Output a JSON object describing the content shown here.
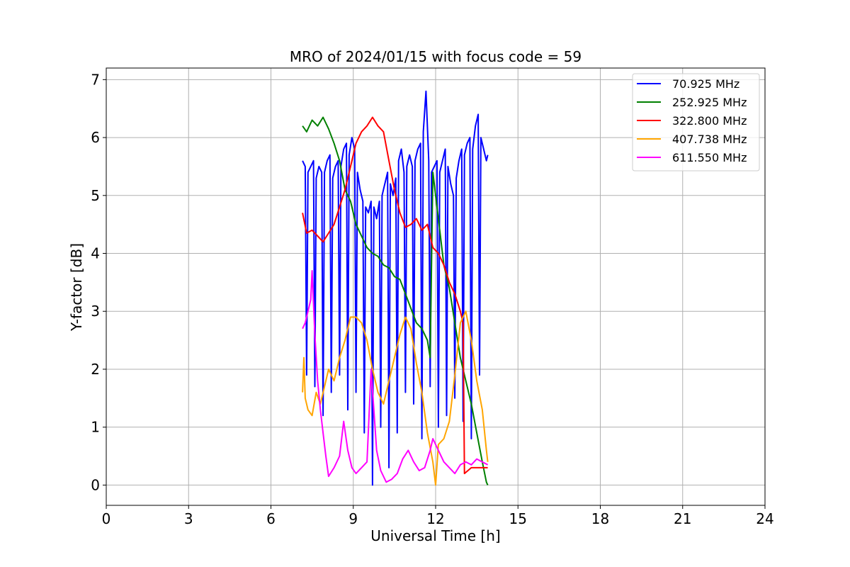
{
  "chart_data": {
    "type": "line",
    "title": "MRO of 2024/01/15 with focus code = 59",
    "xlabel": "Universal Time [h]",
    "ylabel": "Y-factor [dB]",
    "xlim": [
      0,
      24
    ],
    "ylim": [
      -0.35,
      7.2
    ],
    "xticks": [
      0,
      3,
      6,
      9,
      12,
      15,
      18,
      21,
      24
    ],
    "yticks": [
      0,
      1,
      2,
      3,
      4,
      5,
      6,
      7
    ],
    "grid": true,
    "legend_position": "top-right",
    "series": [
      {
        "name": "  70.925 MHz",
        "color": "#0000ff",
        "x": [
          7.15,
          7.25,
          7.3,
          7.35,
          7.45,
          7.55,
          7.6,
          7.65,
          7.75,
          7.85,
          7.9,
          7.95,
          8.05,
          8.15,
          8.2,
          8.25,
          8.35,
          8.45,
          8.5,
          8.55,
          8.65,
          8.75,
          8.8,
          8.85,
          8.95,
          9.05,
          9.1,
          9.15,
          9.25,
          9.35,
          9.4,
          9.45,
          9.55,
          9.65,
          9.7,
          9.75,
          9.85,
          9.95,
          10.0,
          10.05,
          10.15,
          10.25,
          10.3,
          10.35,
          10.45,
          10.55,
          10.6,
          10.65,
          10.75,
          10.85,
          10.9,
          10.95,
          11.05,
          11.15,
          11.2,
          11.25,
          11.35,
          11.45,
          11.5,
          11.55,
          11.65,
          11.75,
          11.8,
          11.85,
          11.95,
          12.05,
          12.1,
          12.15,
          12.25,
          12.35,
          12.4,
          12.45,
          12.55,
          12.65,
          12.7,
          12.75,
          12.85,
          12.95,
          13.0,
          13.05,
          13.15,
          13.25,
          13.3,
          13.35,
          13.45,
          13.55,
          13.6,
          13.65,
          13.75,
          13.85,
          13.9
        ],
        "y": [
          5.6,
          5.5,
          1.9,
          5.4,
          5.5,
          5.6,
          1.7,
          5.3,
          5.5,
          5.4,
          1.2,
          5.4,
          5.6,
          5.7,
          1.6,
          5.3,
          5.5,
          5.6,
          1.9,
          5.5,
          5.8,
          5.9,
          1.3,
          5.7,
          6.0,
          5.8,
          1.6,
          5.4,
          5.1,
          4.9,
          0.9,
          4.8,
          4.7,
          4.9,
          0.0,
          4.8,
          4.6,
          4.9,
          1.0,
          5.0,
          5.2,
          5.4,
          0.3,
          5.2,
          5.0,
          5.3,
          0.9,
          5.6,
          5.8,
          5.4,
          1.6,
          5.5,
          5.7,
          5.5,
          1.4,
          5.6,
          5.8,
          5.9,
          0.8,
          6.1,
          6.8,
          5.6,
          1.7,
          5.4,
          5.5,
          5.6,
          1.0,
          5.4,
          5.6,
          5.8,
          1.2,
          5.5,
          5.2,
          5.0,
          1.5,
          5.3,
          5.6,
          5.8,
          1.1,
          5.7,
          5.9,
          6.0,
          0.8,
          5.8,
          6.2,
          6.4,
          1.9,
          6.0,
          5.8,
          5.6,
          5.7
        ]
      },
      {
        "name": "252.925 MHz",
        "color": "#008000",
        "x": [
          7.15,
          7.3,
          7.5,
          7.7,
          7.9,
          8.1,
          8.3,
          8.5,
          8.7,
          8.9,
          9.1,
          9.3,
          9.5,
          9.7,
          9.9,
          10.1,
          10.3,
          10.5,
          10.7,
          10.9,
          11.1,
          11.3,
          11.5,
          11.7,
          11.8,
          11.9,
          12.1,
          12.3,
          12.5,
          12.7,
          12.9,
          13.1,
          13.3,
          13.5,
          13.7,
          13.85,
          13.9
        ],
        "y": [
          6.2,
          6.1,
          6.3,
          6.2,
          6.35,
          6.15,
          5.9,
          5.6,
          5.1,
          4.9,
          4.5,
          4.3,
          4.1,
          4.0,
          3.95,
          3.8,
          3.75,
          3.6,
          3.55,
          3.3,
          3.05,
          2.8,
          2.7,
          2.5,
          2.2,
          5.4,
          4.6,
          3.8,
          3.4,
          2.8,
          2.2,
          1.8,
          1.4,
          0.9,
          0.4,
          0.05,
          0.0
        ]
      },
      {
        "name": "322.800 MHz",
        "color": "#ff0000",
        "x": [
          7.15,
          7.3,
          7.5,
          7.7,
          7.9,
          8.1,
          8.3,
          8.5,
          8.7,
          8.9,
          9.1,
          9.3,
          9.5,
          9.7,
          9.9,
          10.1,
          10.3,
          10.5,
          10.7,
          10.9,
          11.1,
          11.3,
          11.5,
          11.7,
          11.9,
          12.1,
          12.3,
          12.5,
          12.7,
          12.9,
          13.0,
          13.05,
          13.3,
          13.6,
          13.9
        ],
        "y": [
          4.7,
          4.35,
          4.4,
          4.3,
          4.2,
          4.35,
          4.5,
          4.8,
          5.1,
          5.5,
          5.9,
          6.1,
          6.2,
          6.35,
          6.2,
          6.1,
          5.6,
          5.1,
          4.7,
          4.45,
          4.5,
          4.6,
          4.4,
          4.5,
          4.1,
          4.0,
          3.8,
          3.5,
          3.3,
          3.0,
          2.8,
          0.2,
          0.3,
          0.3,
          0.3
        ]
      },
      {
        "name": "407.738 MHz",
        "color": "#ffa500",
        "x": [
          7.15,
          7.2,
          7.25,
          7.35,
          7.5,
          7.65,
          7.8,
          7.95,
          8.1,
          8.3,
          8.5,
          8.7,
          8.9,
          9.1,
          9.3,
          9.5,
          9.7,
          9.9,
          10.1,
          10.3,
          10.5,
          10.7,
          10.9,
          11.1,
          11.3,
          11.5,
          11.7,
          11.9,
          12.0,
          12.1,
          12.3,
          12.5,
          12.7,
          12.9,
          13.1,
          13.3,
          13.5,
          13.7,
          13.85,
          13.9
        ],
        "y": [
          1.6,
          2.2,
          1.5,
          1.3,
          1.2,
          1.6,
          1.4,
          1.7,
          2.0,
          1.8,
          2.2,
          2.5,
          2.9,
          2.9,
          2.8,
          2.5,
          2.0,
          1.6,
          1.4,
          1.8,
          2.2,
          2.6,
          2.9,
          2.7,
          2.1,
          1.6,
          0.9,
          0.4,
          0.0,
          0.7,
          0.8,
          1.1,
          1.9,
          2.8,
          3.0,
          2.5,
          1.8,
          1.3,
          0.6,
          0.4
        ]
      },
      {
        "name": "611.550 MHz",
        "color": "#ff00ff",
        "x": [
          7.15,
          7.25,
          7.35,
          7.45,
          7.5,
          7.6,
          7.7,
          7.8,
          7.9,
          8.0,
          8.1,
          8.3,
          8.5,
          8.65,
          8.8,
          8.95,
          9.1,
          9.3,
          9.5,
          9.65,
          9.75,
          9.85,
          10.0,
          10.2,
          10.4,
          10.6,
          10.8,
          11.0,
          11.2,
          11.4,
          11.6,
          11.8,
          11.9,
          12.1,
          12.3,
          12.5,
          12.7,
          12.9,
          13.1,
          13.3,
          13.5,
          13.7,
          13.9
        ],
        "y": [
          2.7,
          2.8,
          3.0,
          3.2,
          3.7,
          2.6,
          1.8,
          1.3,
          0.9,
          0.5,
          0.15,
          0.3,
          0.5,
          1.1,
          0.6,
          0.3,
          0.2,
          0.3,
          0.4,
          2.0,
          1.3,
          0.6,
          0.25,
          0.05,
          0.1,
          0.2,
          0.45,
          0.6,
          0.4,
          0.25,
          0.3,
          0.6,
          0.8,
          0.6,
          0.4,
          0.3,
          0.2,
          0.35,
          0.4,
          0.35,
          0.45,
          0.4,
          0.35
        ]
      }
    ]
  }
}
